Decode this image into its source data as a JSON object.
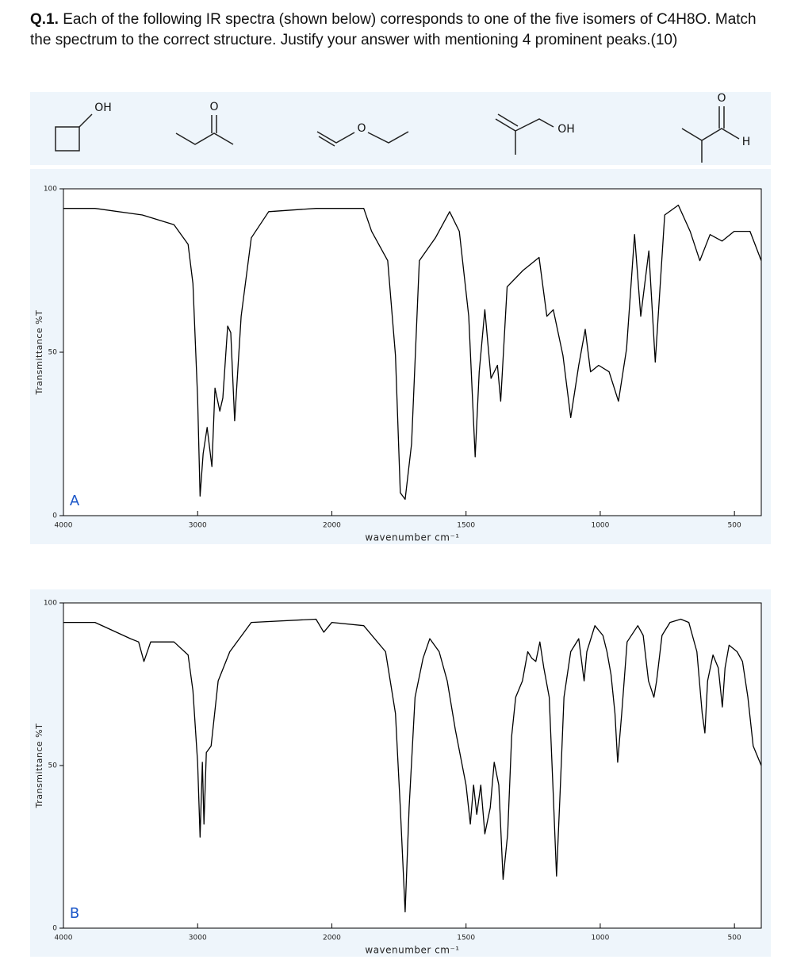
{
  "question": {
    "number": "Q.1.",
    "text": "Each of the following IR spectra (shown below) corresponds to one of the five isomers of C4H8O. Match the spectrum to the correct structure. Justify your answer with mentioning 4 prominent peaks.(10)"
  },
  "structures": [
    {
      "labels": [
        "OH"
      ]
    },
    {
      "labels": [
        "O"
      ]
    },
    {
      "labels": [
        "O"
      ]
    },
    {
      "labels": [
        "OH"
      ]
    },
    {
      "labels": [
        "O",
        "H"
      ]
    }
  ],
  "chart_data": [
    {
      "type": "line",
      "panel_label": "A",
      "xlabel": "wavenumber cm⁻¹",
      "ylabel": "Transmittance %T",
      "color": "#000000",
      "xlim": [
        4000,
        400
      ],
      "xticks": [
        4000,
        3000,
        2000,
        1500,
        1000,
        500
      ],
      "ylim": [
        0,
        100
      ],
      "yticks": [
        0,
        50,
        100
      ],
      "x": [
        4000,
        3765,
        3412,
        3176,
        3071,
        3035,
        3000,
        2982,
        2959,
        2929,
        2894,
        2871,
        2835,
        2812,
        2776,
        2753,
        2724,
        2676,
        2600,
        2471,
        2118,
        1881,
        1852,
        1792,
        1763,
        1745,
        1727,
        1703,
        1674,
        1614,
        1561,
        1525,
        1490,
        1466,
        1451,
        1430,
        1407,
        1383,
        1371,
        1347,
        1288,
        1228,
        1199,
        1175,
        1139,
        1110,
        1080,
        1056,
        1036,
        1006,
        967,
        932,
        902,
        872,
        849,
        819,
        795,
        760,
        709,
        665,
        629,
        591,
        546,
        501,
        442,
        400
      ],
      "values": [
        94,
        94,
        92,
        89,
        83,
        71,
        36,
        6,
        19,
        27,
        15,
        39,
        32,
        36,
        58,
        56,
        29,
        61,
        85,
        93,
        94,
        94,
        87,
        78,
        49,
        7,
        5,
        22,
        78,
        85,
        93,
        87,
        61,
        18,
        44,
        63,
        42,
        46,
        35,
        70,
        75,
        79,
        61,
        63,
        49,
        30,
        46,
        57,
        44,
        46,
        44,
        35,
        51,
        86,
        61,
        81,
        47,
        92,
        95,
        87,
        78,
        86,
        84,
        87,
        87,
        78
      ]
    },
    {
      "type": "line",
      "panel_label": "B",
      "xlabel": "wavenumber cm⁻¹",
      "ylabel": "Transmittance %T",
      "color": "#000000",
      "xlim": [
        4000,
        400
      ],
      "xticks": [
        4000,
        3000,
        2000,
        1500,
        1000,
        500
      ],
      "ylim": [
        0,
        100
      ],
      "yticks": [
        0,
        50,
        100
      ],
      "x": [
        4000,
        3765,
        3500,
        3440,
        3400,
        3350,
        3176,
        3071,
        3035,
        3000,
        2982,
        2965,
        2953,
        2935,
        2900,
        2847,
        2760,
        2600,
        2118,
        2060,
        2000,
        1881,
        1800,
        1763,
        1745,
        1727,
        1712,
        1690,
        1660,
        1635,
        1600,
        1570,
        1540,
        1500,
        1484,
        1472,
        1460,
        1445,
        1430,
        1410,
        1395,
        1378,
        1362,
        1345,
        1330,
        1315,
        1290,
        1270,
        1255,
        1240,
        1225,
        1210,
        1190,
        1175,
        1163,
        1150,
        1135,
        1110,
        1080,
        1060,
        1050,
        1020,
        990,
        975,
        960,
        945,
        935,
        920,
        900,
        860,
        840,
        820,
        800,
        790,
        770,
        740,
        700,
        670,
        640,
        620,
        610,
        600,
        580,
        560,
        545,
        535,
        520,
        490,
        470,
        450,
        430,
        400
      ],
      "values": [
        94,
        94,
        89,
        88,
        82,
        88,
        88,
        84,
        73,
        51,
        28,
        51,
        32,
        54,
        56,
        76,
        85,
        94,
        95,
        91,
        94,
        93,
        85,
        66,
        37,
        5,
        37,
        71,
        83,
        89,
        85,
        76,
        61,
        44,
        32,
        44,
        35,
        44,
        29,
        37,
        51,
        44,
        15,
        29,
        59,
        71,
        76,
        85,
        83,
        82,
        88,
        80,
        71,
        41,
        16,
        41,
        71,
        85,
        89,
        76,
        85,
        93,
        90,
        85,
        78,
        66,
        51,
        66,
        88,
        93,
        90,
        76,
        71,
        76,
        90,
        94,
        95,
        94,
        85,
        66,
        60,
        76,
        84,
        80,
        68,
        80,
        87,
        85,
        82,
        71,
        56,
        50
      ]
    }
  ]
}
